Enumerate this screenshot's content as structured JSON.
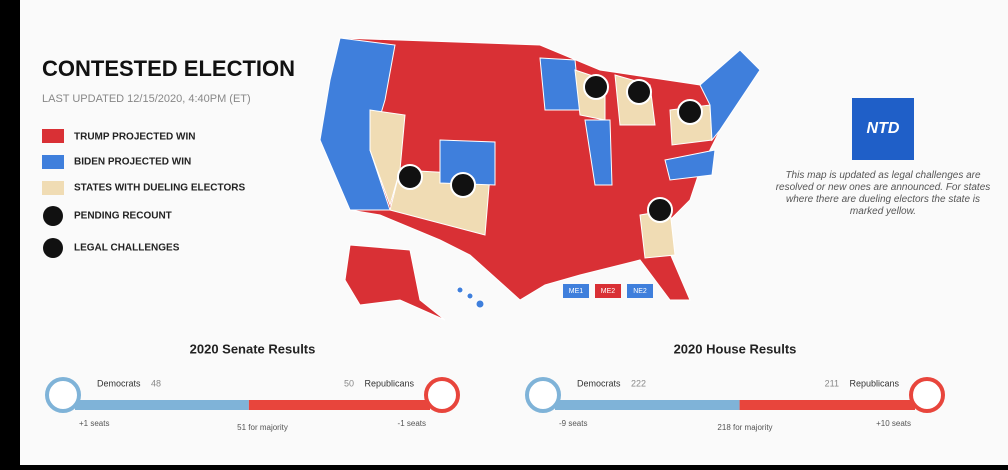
{
  "header": {
    "title": "CONTESTED ELECTION",
    "updated": "LAST UPDATED 12/15/2020, 4:40PM (ET)"
  },
  "legend": [
    "TRUMP PROJECTED WIN",
    "BIDEN PROJECTED WIN",
    "STATES WITH DUELING ELECTORS",
    "PENDING RECOUNT",
    "LEGAL CHALLENGES"
  ],
  "district_labels": [
    "ME1",
    "ME2",
    "NE2"
  ],
  "logo": "NTD",
  "note": "This map is updated as legal challenges are resolved or new ones are announced. For states where there are dueling electors the state is marked yellow.",
  "results": [
    {
      "title": "2020 Senate Results",
      "dem_label": "Democrats",
      "dem_seats": 48,
      "rep_seats": 50,
      "rep_label": "Republicans",
      "dem_change": "+1 seats",
      "majority": "51 for majority",
      "rep_change": "-1 seats"
    },
    {
      "title": "2020 House Results",
      "dem_label": "Democrats",
      "dem_seats": 222,
      "rep_seats": 211,
      "rep_label": "Republicans",
      "dem_change": "-9 seats",
      "majority": "218 for majority",
      "rep_change": "+10 seats"
    }
  ]
}
